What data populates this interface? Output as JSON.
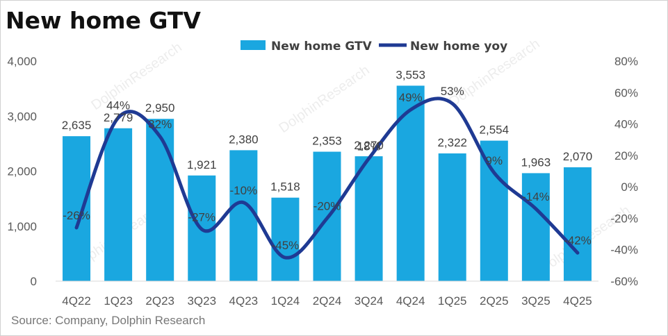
{
  "chart_data": {
    "type": "bar",
    "title": "New home GTV",
    "categories": [
      "4Q22",
      "1Q23",
      "2Q23",
      "3Q23",
      "4Q23",
      "1Q24",
      "2Q24",
      "3Q24",
      "4Q24",
      "1Q25",
      "2Q25",
      "3Q25",
      "4Q25"
    ],
    "bar_series": {
      "name": "New home GTV",
      "axis": "left",
      "color": "#1AA7E0",
      "values": [
        2635,
        2779,
        2950,
        1921,
        2380,
        1518,
        2353,
        2270,
        3553,
        2322,
        2554,
        1963,
        2070
      ],
      "labels": [
        "2,635",
        "2,779",
        "2,950",
        "1,921",
        "2,380",
        "1,518",
        "2,353",
        "2,270",
        "3,553",
        "2,322",
        "2,554",
        "1,963",
        "2,070"
      ]
    },
    "line_series": {
      "name": "New home yoy",
      "axis": "right",
      "color": "#1F3A93",
      "values": [
        -26,
        44,
        32,
        -27,
        -10,
        -45,
        -20,
        18,
        49,
        53,
        9,
        -14,
        -42
      ],
      "labels": [
        "-26%",
        "44%",
        "32%",
        "-27%",
        "-10%",
        "-45%",
        "-20%",
        "18%",
        "49%",
        "53%",
        "9%",
        "-14%",
        "-42%"
      ]
    },
    "left_axis": {
      "ylim": [
        0,
        4000
      ],
      "ticks": [
        "0",
        "1,000",
        "2,000",
        "3,000",
        "4,000"
      ]
    },
    "right_axis": {
      "ylim": [
        -60,
        80
      ],
      "ticks": [
        "-60%",
        "-40%",
        "-20%",
        "0%",
        "20%",
        "40%",
        "60%",
        "80%"
      ]
    },
    "legend_position": "top",
    "grid": false
  },
  "source": "Source: Company, Dolphin Research",
  "watermark": "DolphinResearch"
}
